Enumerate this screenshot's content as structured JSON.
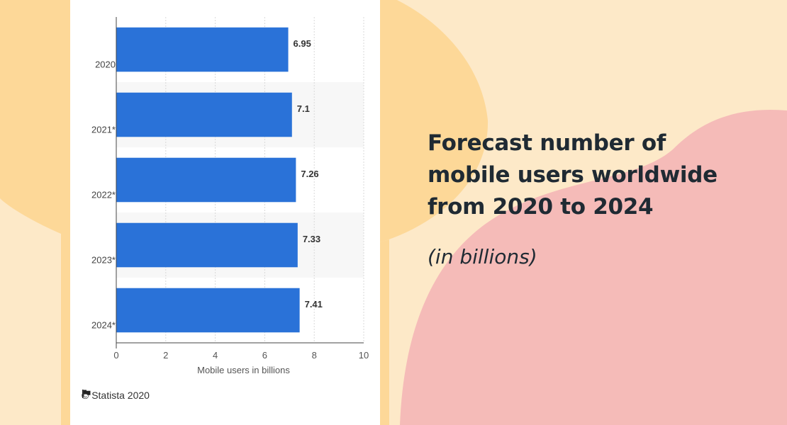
{
  "title": "Forecast number of mobile users worldwide from 2020 to 2024",
  "subtitle": "(in billions)",
  "footer": {
    "credit": "© Statista 2020"
  },
  "colors": {
    "bar": "#2a72d8",
    "background": "#fde9c8",
    "blob_orange": "#fdd898",
    "blob_pink": "#f5bbb8"
  },
  "icons": {
    "footer_icon": "flag-icon"
  },
  "chart_data": {
    "type": "bar",
    "orientation": "horizontal",
    "categories": [
      "2020",
      "2021*",
      "2022*",
      "2023*",
      "2024*"
    ],
    "values": [
      6.95,
      7.1,
      7.26,
      7.33,
      7.41
    ],
    "value_labels": [
      "6.95",
      "7.1",
      "7.26",
      "7.33",
      "7.41"
    ],
    "xlabel": "Mobile users in billions",
    "ylabel": "",
    "xlim": [
      0,
      10
    ],
    "xticks": [
      "0",
      "2",
      "4",
      "6",
      "8",
      "10"
    ],
    "grid": true
  }
}
